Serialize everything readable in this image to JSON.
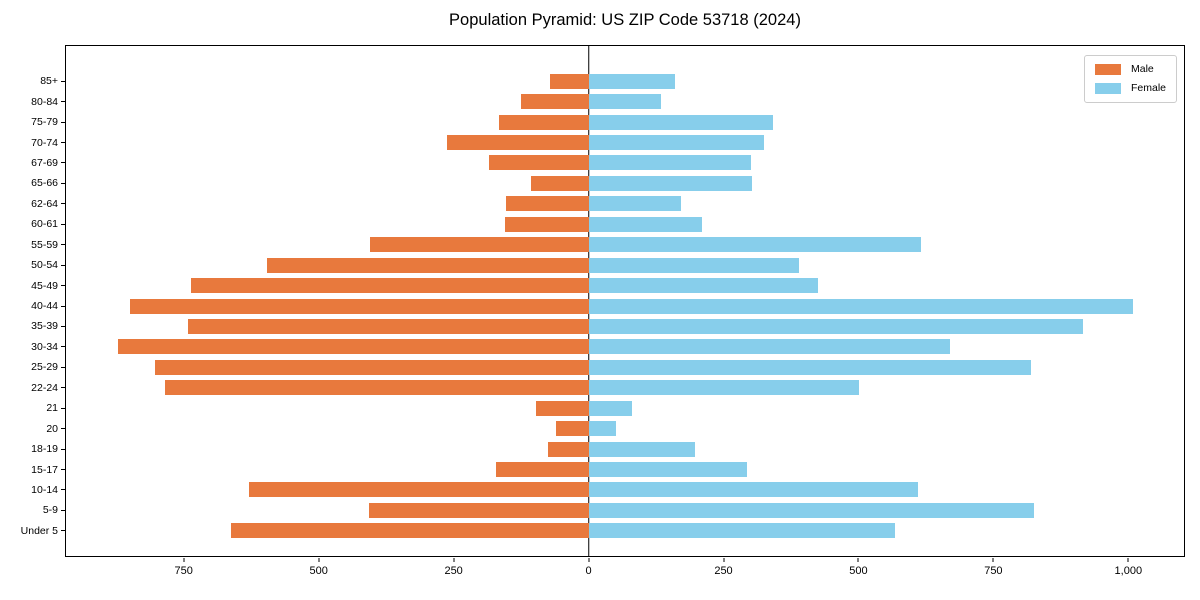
{
  "title": "Population Pyramid: US ZIP Code 53718 (2024)",
  "legend": {
    "male_label": "Male",
    "female_label": "Female",
    "position": "upper right"
  },
  "colors": {
    "male": "#E8793D",
    "female": "#87CEEB",
    "axis": "#000000",
    "zero_line": "#000000",
    "legend_border": "#CCCCCC",
    "background": "#FFFFFF"
  },
  "chart_data": {
    "type": "bar",
    "subtype": "population-pyramid",
    "orientation": "horizontal",
    "title": "Population Pyramid: US ZIP Code 53718 (2024)",
    "xlabel": "",
    "ylabel": "",
    "grid": false,
    "legend_position": "upper right",
    "xlim": [
      -970,
      1105
    ],
    "x_ticks": [
      -750,
      -500,
      -250,
      0,
      250,
      500,
      750,
      1000
    ],
    "x_tick_labels": [
      "750",
      "500",
      "250",
      "0",
      "250",
      "500",
      "750",
      "1,000"
    ],
    "categories": [
      "85+",
      "80-84",
      "75-79",
      "70-74",
      "67-69",
      "65-66",
      "62-64",
      "60-61",
      "55-59",
      "50-54",
      "45-49",
      "40-44",
      "35-39",
      "30-34",
      "25-29",
      "22-24",
      "21",
      "20",
      "18-19",
      "15-17",
      "10-14",
      "5-9",
      "Under 5"
    ],
    "series": [
      {
        "name": "Male",
        "side": "left",
        "color": "#E8793D",
        "values": [
          72,
          125,
          167,
          262,
          185,
          107,
          153,
          155,
          405,
          597,
          738,
          851,
          744,
          874,
          805,
          786,
          98,
          60,
          75,
          172,
          630,
          407,
          663
        ]
      },
      {
        "name": "Female",
        "side": "right",
        "color": "#87CEEB",
        "values": [
          161,
          134,
          343,
          326,
          302,
          304,
          171,
          211,
          616,
          391,
          426,
          1011,
          917,
          670,
          821,
          502,
          81,
          50,
          198,
          294,
          611,
          826,
          568
        ]
      }
    ]
  }
}
